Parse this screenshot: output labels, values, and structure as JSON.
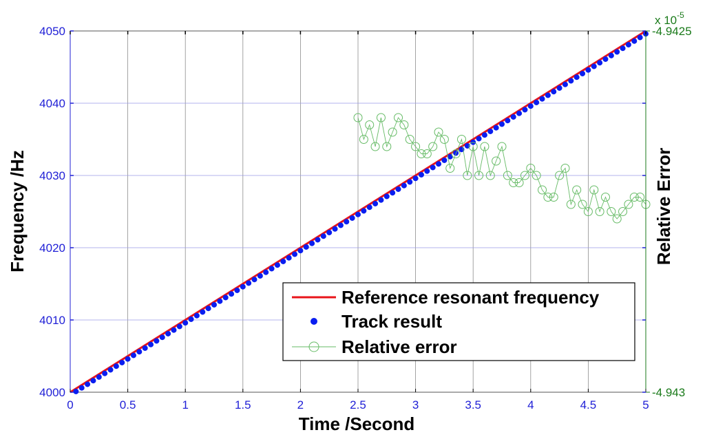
{
  "chart_data": {
    "type": "line",
    "xlabel": "Time /Second",
    "ylabel": "Frequency /Hz",
    "y2label": "Relative Error",
    "xlim": [
      0,
      5
    ],
    "ylim": [
      4000,
      4050
    ],
    "y2lim": [
      -4.943,
      -4.9425
    ],
    "x_ticks": [
      0,
      0.5,
      1,
      1.5,
      2,
      2.5,
      3,
      3.5,
      4,
      4.5,
      5
    ],
    "x_tick_labels": [
      "0",
      "0.5",
      "1",
      "1.5",
      "2",
      "2.5",
      "3",
      "3.5",
      "4",
      "4.5",
      "5"
    ],
    "y_ticks": [
      4000,
      4010,
      4020,
      4030,
      4040,
      4050
    ],
    "y_tick_labels": [
      "4000",
      "4010",
      "4020",
      "4030",
      "4040",
      "4050"
    ],
    "y2_tick_labels": [
      "-4.9425",
      "-4.943"
    ],
    "y2_exponent_label": "x 10",
    "y2_exponent_power": "-5",
    "grid": true,
    "legend_position": "lower-right",
    "colors": {
      "left_axis": "#1f1fd6",
      "right_axis": "#1a7a1a",
      "reference": "#e8141a",
      "track": "#0a1ef0",
      "relative_error": "#66bb66",
      "grid": "#9a9ae6"
    },
    "series": [
      {
        "name": "Reference resonant frequency",
        "kind": "line",
        "axis": "left",
        "x": [
          0,
          5
        ],
        "y": [
          4000,
          4050
        ]
      },
      {
        "name": "Track result",
        "kind": "scatter",
        "axis": "left",
        "x_start": 0.05,
        "x_step": 0.05,
        "count": 100,
        "slope": 10,
        "intercept": 3999.6
      },
      {
        "name": "Relative error",
        "kind": "line-markers",
        "axis": "right",
        "x": [
          2.5,
          2.55,
          2.6,
          2.65,
          2.7,
          2.75,
          2.8,
          2.85,
          2.9,
          2.95,
          3.0,
          3.05,
          3.1,
          3.15,
          3.2,
          3.25,
          3.3,
          3.35,
          3.4,
          3.45,
          3.5,
          3.55,
          3.6,
          3.65,
          3.7,
          3.75,
          3.8,
          3.85,
          3.9,
          3.95,
          4.0,
          4.05,
          4.1,
          4.15,
          4.2,
          4.25,
          4.3,
          4.35,
          4.4,
          4.45,
          4.5,
          4.55,
          4.6,
          4.65,
          4.7,
          4.75,
          4.8,
          4.85,
          4.9,
          4.95,
          5.0
        ],
        "y": [
          -4.94262,
          -4.94265,
          -4.94263,
          -4.94266,
          -4.94262,
          -4.94266,
          -4.94264,
          -4.94262,
          -4.94263,
          -4.94265,
          -4.94266,
          -4.94267,
          -4.94267,
          -4.94266,
          -4.94264,
          -4.94265,
          -4.94269,
          -4.94267,
          -4.94265,
          -4.9427,
          -4.94266,
          -4.9427,
          -4.94266,
          -4.9427,
          -4.94268,
          -4.94266,
          -4.9427,
          -4.94271,
          -4.94271,
          -4.9427,
          -4.94269,
          -4.9427,
          -4.94272,
          -4.94273,
          -4.94273,
          -4.9427,
          -4.94269,
          -4.94274,
          -4.94272,
          -4.94274,
          -4.94275,
          -4.94272,
          -4.94275,
          -4.94273,
          -4.94275,
          -4.94276,
          -4.94275,
          -4.94274,
          -4.94273,
          -4.94273,
          -4.94274
        ]
      }
    ]
  }
}
